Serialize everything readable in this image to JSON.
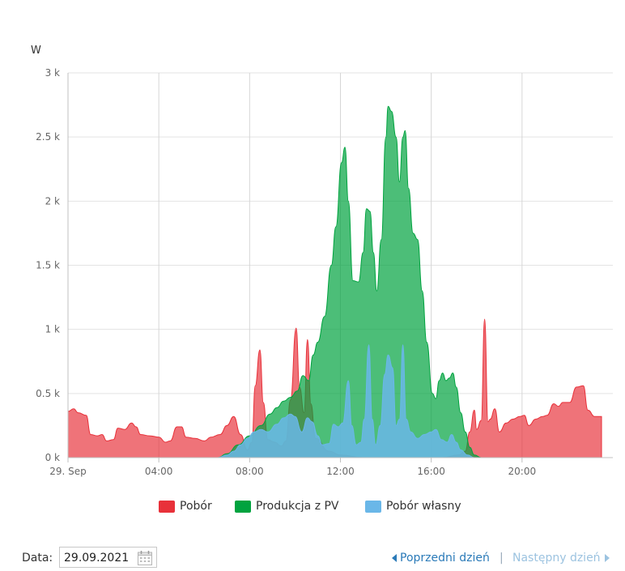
{
  "chart_data": {
    "type": "area",
    "y_unit": "W",
    "ylim": [
      0,
      3000
    ],
    "y_ticks": [
      {
        "value": 0,
        "label": "0 k"
      },
      {
        "value": 500,
        "label": "0.5 k"
      },
      {
        "value": 1000,
        "label": "1 k"
      },
      {
        "value": 1500,
        "label": "1.5 k"
      },
      {
        "value": 2000,
        "label": "2 k"
      },
      {
        "value": 2500,
        "label": "2.5 k"
      },
      {
        "value": 3000,
        "label": "3 k"
      }
    ],
    "xlim_hours": [
      0,
      24
    ],
    "x_ticks": [
      {
        "hour": 0,
        "label": "29. Sep"
      },
      {
        "hour": 4,
        "label": "04:00"
      },
      {
        "hour": 8,
        "label": "08:00"
      },
      {
        "hour": 12,
        "label": "12:00"
      },
      {
        "hour": 16,
        "label": "16:00"
      },
      {
        "hour": 20,
        "label": "20:00"
      }
    ],
    "grid": true,
    "legend_position": "bottom",
    "series": [
      {
        "name": "Pobór",
        "color": "#e8313a",
        "points": [
          [
            0,
            0.36
          ],
          [
            0.25,
            0.38
          ],
          [
            0.45,
            0.35
          ],
          [
            0.8,
            0.33
          ],
          [
            1.0,
            0.18
          ],
          [
            1.3,
            0.17
          ],
          [
            1.5,
            0.18
          ],
          [
            1.7,
            0.13
          ],
          [
            2.0,
            0.14
          ],
          [
            2.2,
            0.23
          ],
          [
            2.5,
            0.22
          ],
          [
            2.8,
            0.27
          ],
          [
            3.0,
            0.24
          ],
          [
            3.2,
            0.18
          ],
          [
            3.6,
            0.17
          ],
          [
            4.0,
            0.16
          ],
          [
            4.3,
            0.12
          ],
          [
            4.5,
            0.13
          ],
          [
            4.8,
            0.24
          ],
          [
            5.0,
            0.24
          ],
          [
            5.2,
            0.16
          ],
          [
            5.6,
            0.15
          ],
          [
            6.0,
            0.13
          ],
          [
            6.3,
            0.16
          ],
          [
            6.7,
            0.18
          ],
          [
            7.0,
            0.25
          ],
          [
            7.3,
            0.32
          ],
          [
            7.6,
            0.18
          ],
          [
            7.9,
            0.06
          ],
          [
            8.1,
            0.12
          ],
          [
            8.25,
            0.56
          ],
          [
            8.45,
            0.84
          ],
          [
            8.6,
            0.43
          ],
          [
            8.8,
            0.14
          ],
          [
            9.1,
            0.12
          ],
          [
            9.4,
            0.09
          ],
          [
            9.6,
            0.13
          ],
          [
            9.8,
            0.45
          ],
          [
            10.05,
            1.01
          ],
          [
            10.2,
            0.55
          ],
          [
            10.4,
            0.35
          ],
          [
            10.55,
            0.92
          ],
          [
            10.7,
            0.42
          ],
          [
            10.9,
            0.15
          ],
          [
            11.5,
            0.05
          ],
          [
            12.0,
            0.02
          ],
          [
            13.0,
            0.0
          ],
          [
            15.0,
            0.0
          ],
          [
            16.5,
            0.0
          ],
          [
            17.2,
            0.02
          ],
          [
            17.5,
            0.05
          ],
          [
            17.7,
            0.2
          ],
          [
            17.9,
            0.37
          ],
          [
            18.0,
            0.22
          ],
          [
            18.2,
            0.29
          ],
          [
            18.35,
            1.08
          ],
          [
            18.5,
            0.28
          ],
          [
            18.6,
            0.3
          ],
          [
            18.8,
            0.38
          ],
          [
            19.0,
            0.2
          ],
          [
            19.3,
            0.27
          ],
          [
            19.6,
            0.3
          ],
          [
            19.9,
            0.32
          ],
          [
            20.1,
            0.33
          ],
          [
            20.3,
            0.25
          ],
          [
            20.6,
            0.3
          ],
          [
            20.9,
            0.32
          ],
          [
            21.1,
            0.33
          ],
          [
            21.4,
            0.42
          ],
          [
            21.6,
            0.4
          ],
          [
            21.8,
            0.43
          ],
          [
            22.1,
            0.43
          ],
          [
            22.4,
            0.55
          ],
          [
            22.7,
            0.56
          ],
          [
            22.9,
            0.37
          ],
          [
            23.2,
            0.32
          ],
          [
            23.5,
            0.32
          ]
        ]
      },
      {
        "name": "Produkcja z PV",
        "color": "#00a33f",
        "points": [
          [
            6.6,
            0.0
          ],
          [
            7.0,
            0.03
          ],
          [
            7.5,
            0.1
          ],
          [
            8.0,
            0.17
          ],
          [
            8.5,
            0.25
          ],
          [
            8.9,
            0.34
          ],
          [
            9.2,
            0.39
          ],
          [
            9.5,
            0.44
          ],
          [
            9.8,
            0.47
          ],
          [
            10.1,
            0.52
          ],
          [
            10.35,
            0.64
          ],
          [
            10.6,
            0.6
          ],
          [
            10.8,
            0.8
          ],
          [
            11.0,
            0.9
          ],
          [
            11.3,
            1.1
          ],
          [
            11.6,
            1.5
          ],
          [
            11.8,
            1.8
          ],
          [
            12.05,
            2.3
          ],
          [
            12.2,
            2.42
          ],
          [
            12.35,
            2.0
          ],
          [
            12.55,
            1.38
          ],
          [
            12.8,
            1.37
          ],
          [
            13.0,
            1.6
          ],
          [
            13.15,
            1.94
          ],
          [
            13.3,
            1.92
          ],
          [
            13.45,
            1.6
          ],
          [
            13.6,
            1.3
          ],
          [
            13.8,
            1.7
          ],
          [
            14.0,
            2.5
          ],
          [
            14.1,
            2.74
          ],
          [
            14.25,
            2.7
          ],
          [
            14.45,
            2.5
          ],
          [
            14.6,
            2.15
          ],
          [
            14.75,
            2.5
          ],
          [
            14.85,
            2.55
          ],
          [
            15.0,
            2.1
          ],
          [
            15.2,
            1.75
          ],
          [
            15.4,
            1.7
          ],
          [
            15.6,
            1.3
          ],
          [
            15.8,
            0.9
          ],
          [
            16.05,
            0.5
          ],
          [
            16.2,
            0.46
          ],
          [
            16.35,
            0.6
          ],
          [
            16.5,
            0.66
          ],
          [
            16.65,
            0.6
          ],
          [
            16.8,
            0.62
          ],
          [
            16.95,
            0.66
          ],
          [
            17.1,
            0.55
          ],
          [
            17.3,
            0.35
          ],
          [
            17.5,
            0.2
          ],
          [
            17.7,
            0.08
          ],
          [
            17.9,
            0.02
          ],
          [
            18.2,
            0.0
          ]
        ]
      },
      {
        "name": "Pobór własny",
        "color": "#6ab7e8",
        "points": [
          [
            6.6,
            0.0
          ],
          [
            7.0,
            0.02
          ],
          [
            7.3,
            0.05
          ],
          [
            7.6,
            0.1
          ],
          [
            7.9,
            0.15
          ],
          [
            8.2,
            0.2
          ],
          [
            8.5,
            0.22
          ],
          [
            8.8,
            0.2
          ],
          [
            9.2,
            0.26
          ],
          [
            9.5,
            0.31
          ],
          [
            9.8,
            0.34
          ],
          [
            10.0,
            0.32
          ],
          [
            10.3,
            0.2
          ],
          [
            10.55,
            0.31
          ],
          [
            10.75,
            0.28
          ],
          [
            11.0,
            0.17
          ],
          [
            11.2,
            0.1
          ],
          [
            11.5,
            0.11
          ],
          [
            11.7,
            0.26
          ],
          [
            11.9,
            0.24
          ],
          [
            12.1,
            0.27
          ],
          [
            12.35,
            0.6
          ],
          [
            12.5,
            0.25
          ],
          [
            12.7,
            0.1
          ],
          [
            12.9,
            0.12
          ],
          [
            13.05,
            0.3
          ],
          [
            13.25,
            0.88
          ],
          [
            13.4,
            0.3
          ],
          [
            13.55,
            0.1
          ],
          [
            13.75,
            0.25
          ],
          [
            13.95,
            0.65
          ],
          [
            14.1,
            0.8
          ],
          [
            14.3,
            0.7
          ],
          [
            14.45,
            0.25
          ],
          [
            14.6,
            0.3
          ],
          [
            14.75,
            0.88
          ],
          [
            14.9,
            0.3
          ],
          [
            15.1,
            0.2
          ],
          [
            15.4,
            0.15
          ],
          [
            15.7,
            0.18
          ],
          [
            16.0,
            0.2
          ],
          [
            16.2,
            0.22
          ],
          [
            16.45,
            0.14
          ],
          [
            16.7,
            0.12
          ],
          [
            16.9,
            0.18
          ],
          [
            17.1,
            0.12
          ],
          [
            17.3,
            0.06
          ],
          [
            17.6,
            0.02
          ],
          [
            17.9,
            0.0
          ]
        ]
      }
    ]
  },
  "legend": [
    {
      "label": "Pobór",
      "color": "#e8313a"
    },
    {
      "label": "Produkcja z PV",
      "color": "#00a33f"
    },
    {
      "label": "Pobór własny",
      "color": "#6ab7e8"
    }
  ],
  "footer": {
    "date_label": "Data:",
    "date_value": "29.09.2021",
    "prev_label": "Poprzedni dzień",
    "separator": "|",
    "next_label": "Następny dzień"
  }
}
